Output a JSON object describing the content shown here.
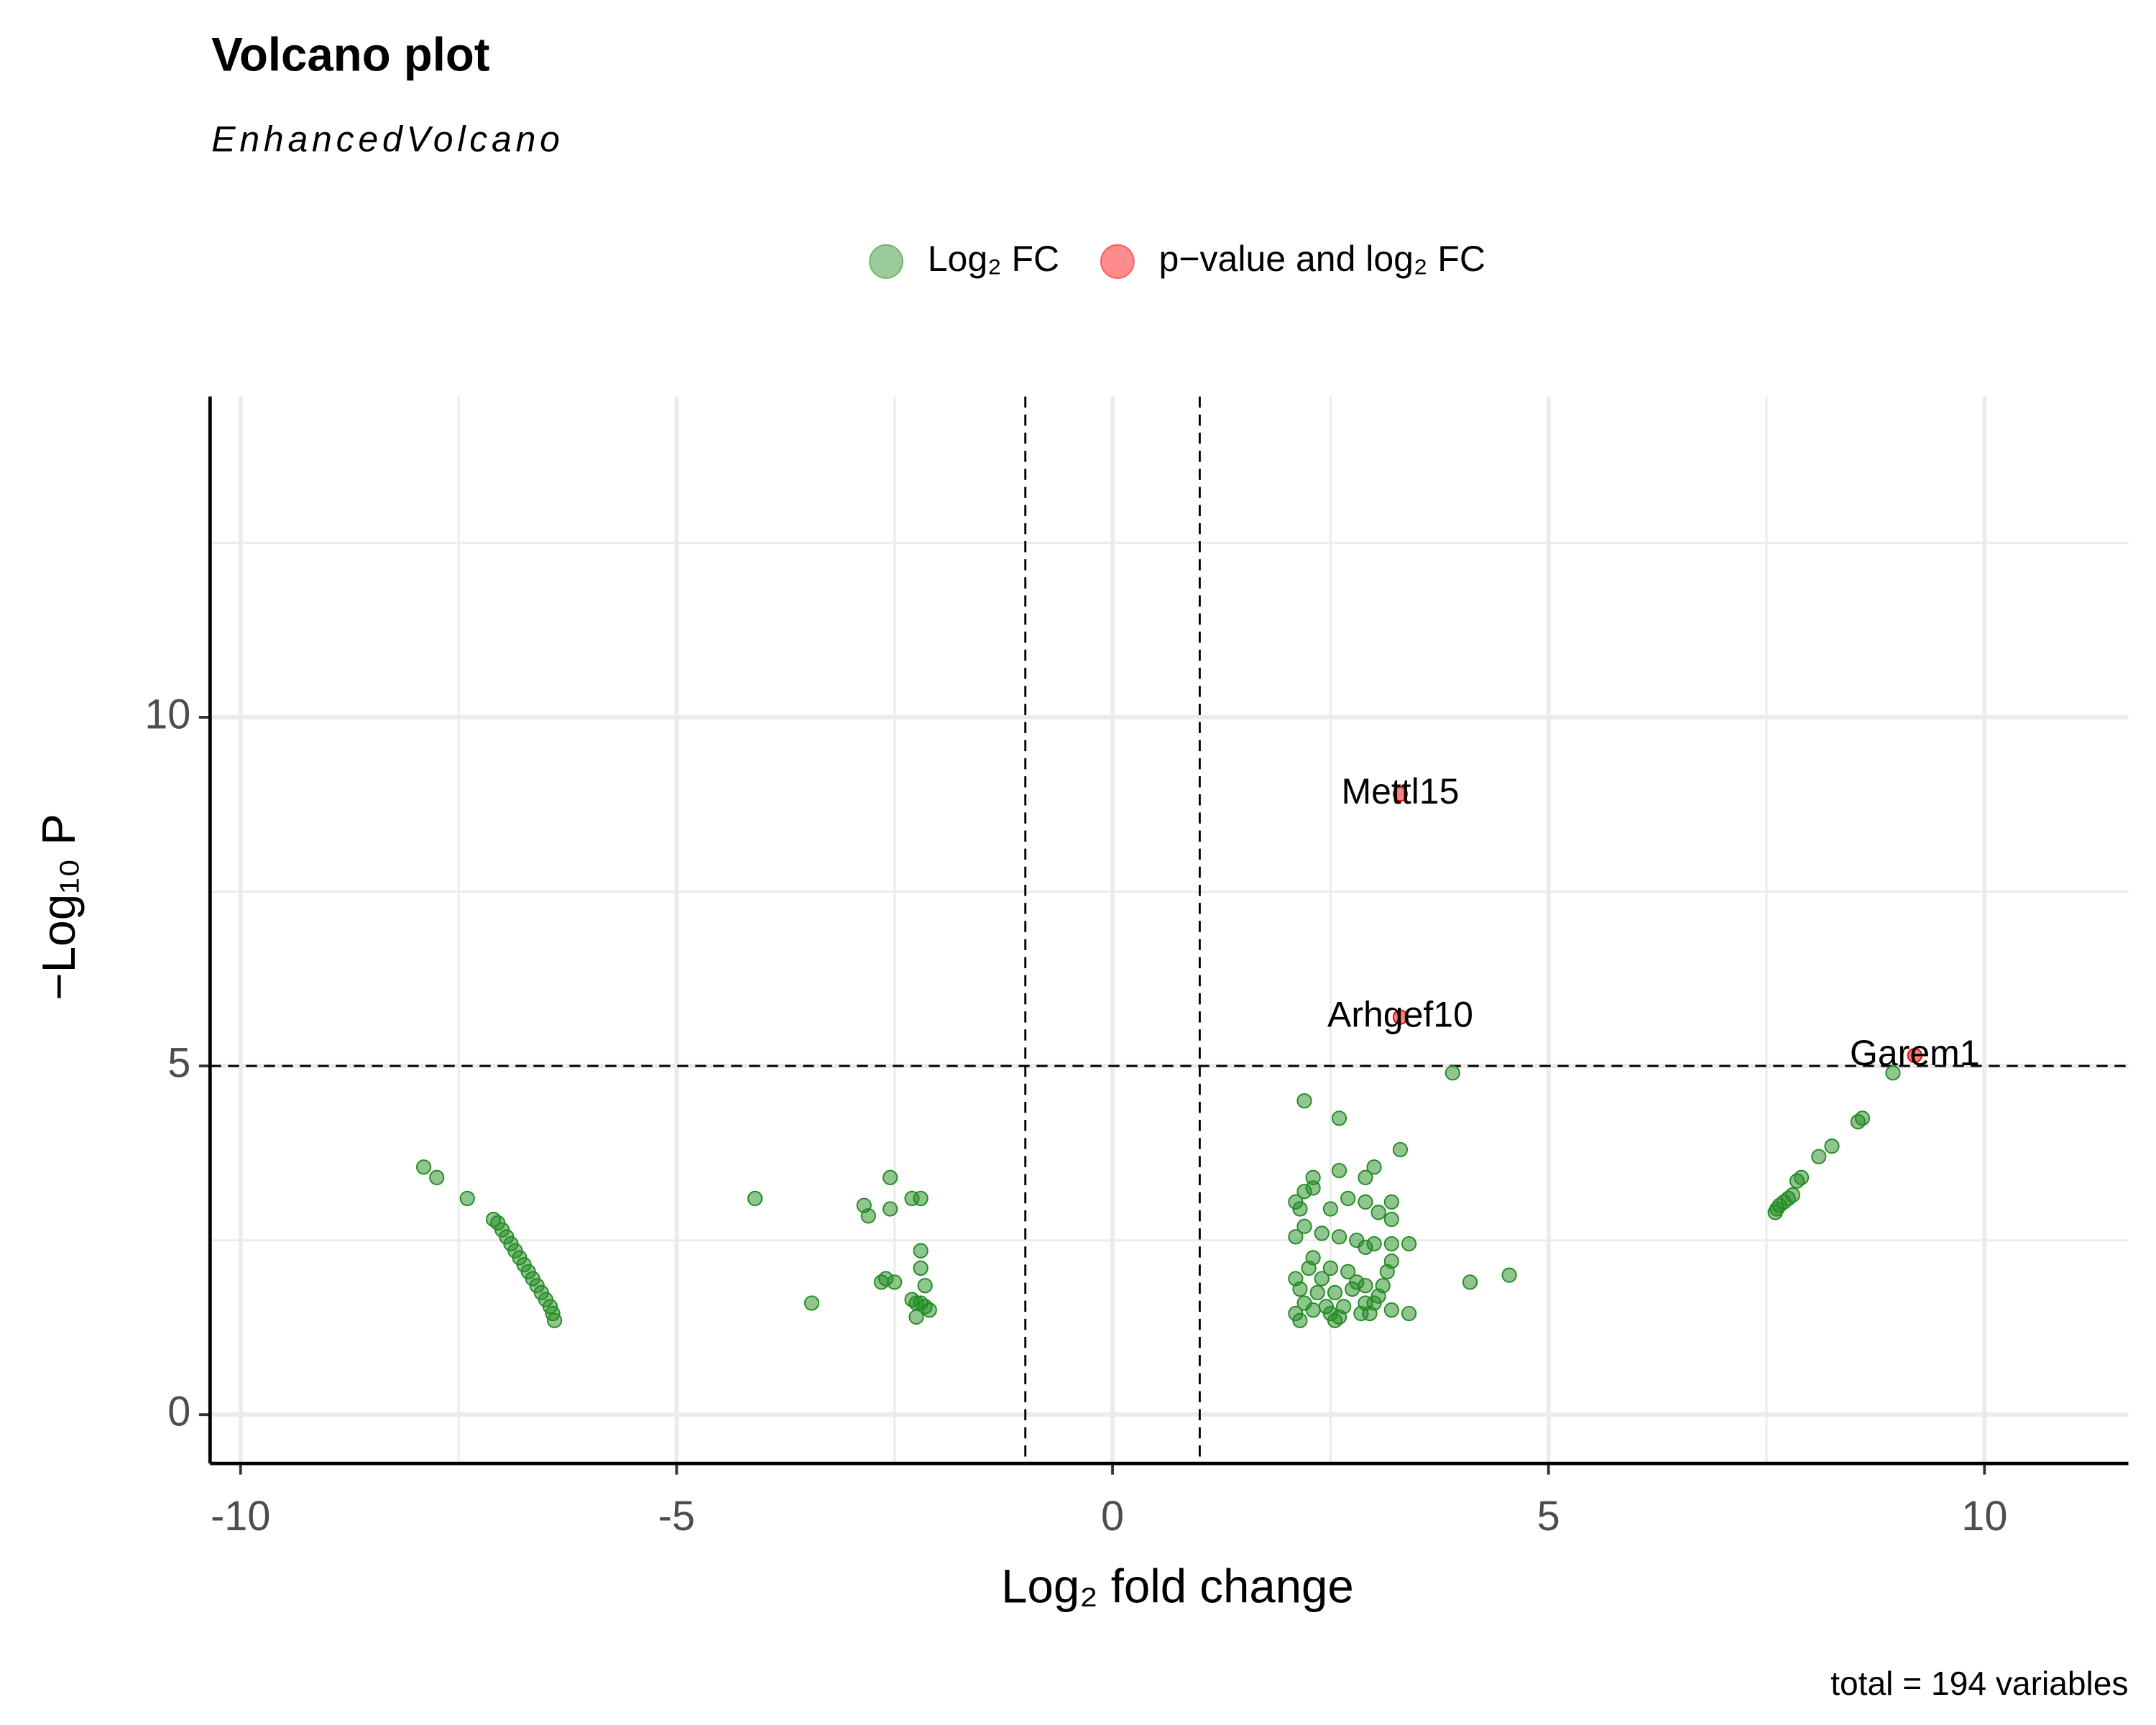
{
  "chart_data": {
    "type": "scatter",
    "title": "Volcano plot",
    "subtitle": "EnhancedVolcano",
    "x_label": "Log₂ fold change",
    "y_label": "−Log₁₀ P",
    "caption": "total = 194 variables",
    "legend": "top",
    "xlim": [
      -10.35,
      11.65
    ],
    "xticks": [
      -10,
      -5,
      0,
      5,
      10
    ],
    "xminor": [
      -7.5,
      -2.5,
      2.5,
      7.5
    ],
    "ylim": [
      -0.7,
      14.6
    ],
    "yticks": [
      0,
      5,
      10
    ],
    "yminor": [
      2.5,
      7.5,
      12.5
    ],
    "cutoffs": {
      "x": [
        -1,
        1
      ],
      "y": 5
    },
    "series": [
      {
        "name": "Log₂ FC",
        "color": "#228b22",
        "x": [
          -7.9,
          -7.75,
          -7.4,
          -7.1,
          -7.05,
          -7.0,
          -6.95,
          -6.9,
          -6.85,
          -6.8,
          -6.75,
          -6.7,
          -6.65,
          -6.6,
          -6.55,
          -6.5,
          -6.45,
          -6.42,
          -6.4,
          -4.1,
          -3.45,
          -2.85,
          -2.8,
          -2.55,
          -2.55,
          -2.6,
          -2.5,
          -2.65,
          -2.3,
          -2.2,
          -2.2,
          -2.2,
          -2.15,
          -2.3,
          -2.25,
          -2.2,
          -2.1,
          -2.25,
          -2.15,
          2.2,
          2.6,
          3.3,
          3.9,
          2.6,
          3.0,
          2.3,
          2.9,
          2.2,
          2.3,
          2.1,
          2.15,
          2.5,
          2.7,
          2.9,
          3.2,
          2.2,
          2.1,
          2.4,
          2.6,
          2.8,
          3.0,
          3.2,
          3.4,
          2.9,
          3.2,
          3.05,
          2.3,
          2.25,
          2.5,
          2.7,
          3.2,
          3.15,
          2.1,
          2.4,
          2.9,
          2.8,
          3.1,
          2.15,
          2.35,
          2.55,
          2.75,
          3.05,
          2.2,
          2.45,
          2.65,
          2.9,
          3.0,
          2.1,
          2.3,
          2.5,
          2.6,
          2.85,
          3.2,
          3.4,
          2.15,
          2.55,
          2.95,
          4.1,
          4.55,
          7.6,
          7.62,
          7.65,
          7.7,
          7.75,
          7.8,
          7.85,
          7.9,
          8.1,
          8.25,
          8.55,
          8.6,
          8.95
        ],
        "values": [
          3.55,
          3.4,
          3.1,
          2.8,
          2.75,
          2.65,
          2.55,
          2.45,
          2.35,
          2.25,
          2.15,
          2.05,
          1.95,
          1.85,
          1.75,
          1.65,
          1.55,
          1.45,
          1.35,
          3.1,
          1.6,
          3.0,
          2.85,
          3.4,
          2.95,
          1.95,
          1.9,
          1.9,
          3.1,
          3.1,
          2.35,
          2.1,
          1.85,
          1.65,
          1.6,
          1.6,
          1.5,
          1.4,
          1.55,
          4.5,
          4.25,
          3.8,
          4.9,
          3.5,
          3.55,
          3.4,
          3.4,
          3.2,
          3.25,
          3.05,
          2.95,
          2.95,
          3.1,
          3.05,
          3.05,
          2.7,
          2.55,
          2.6,
          2.55,
          2.5,
          2.45,
          2.45,
          2.45,
          2.4,
          2.8,
          2.9,
          2.25,
          2.1,
          2.1,
          2.05,
          2.2,
          2.05,
          1.95,
          1.95,
          1.85,
          1.9,
          1.85,
          1.8,
          1.75,
          1.75,
          1.8,
          1.7,
          1.6,
          1.55,
          1.55,
          1.6,
          1.6,
          1.45,
          1.5,
          1.45,
          1.4,
          1.45,
          1.5,
          1.45,
          1.35,
          1.35,
          1.45,
          1.9,
          2.0,
          2.9,
          2.95,
          3.0,
          3.05,
          3.1,
          3.15,
          3.35,
          3.4,
          3.7,
          3.85,
          4.2,
          4.25,
          4.9
        ]
      },
      {
        "name": "p−value and log₂ FC",
        "color": "#ff0000",
        "x": [
          3.3,
          3.3,
          9.2
        ],
        "values": [
          8.9,
          5.7,
          5.15
        ],
        "point_labels": [
          "Mettl15",
          "Arhgef10",
          "Garem1"
        ]
      }
    ]
  }
}
